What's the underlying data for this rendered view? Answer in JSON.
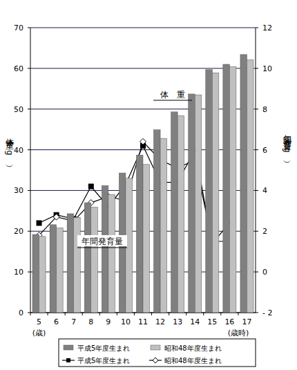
{
  "chart_data": {
    "type": "bar",
    "categories": [
      "5",
      "6",
      "7",
      "8",
      "9",
      "10",
      "11",
      "12",
      "13",
      "14",
      "15",
      "16",
      "17"
    ],
    "y_label": "体重（kg）",
    "y2_label": "年間発育量（kg）",
    "annotations": [
      "(歳)",
      "(歳時)",
      "体　重",
      "年間発育量"
    ],
    "ylim": [
      0,
      70
    ],
    "yticks": [
      0,
      10,
      20,
      30,
      40,
      50,
      60,
      70
    ],
    "y2lim": [
      -2,
      12
    ],
    "y2ticks": [
      {
        "value": -2,
        "label": "- 2"
      },
      0,
      2,
      4,
      6,
      8,
      10,
      12
    ],
    "grid": true,
    "legend": "bottom",
    "series": [
      {
        "name": "平成5年度生まれ",
        "type": "bar",
        "color": "#808080",
        "values": [
          19.2,
          21.6,
          24.3,
          27.0,
          31.2,
          34.3,
          38.7,
          44.9,
          49.3,
          53.7,
          59.7,
          61.0,
          63.4
        ]
      },
      {
        "name": "昭和48年度生まれ",
        "type": "bar",
        "color": "#c0c0c0",
        "values": [
          18.7,
          20.8,
          23.4,
          25.9,
          29.0,
          33.0,
          36.4,
          42.8,
          48.4,
          53.5,
          58.9,
          60.4,
          62.1
        ]
      },
      {
        "name": "平成5年度生まれ",
        "type": "line",
        "axis": "y2",
        "color": "#000000",
        "marker": "square",
        "line_style": "solid",
        "values": [
          2.4,
          2.8,
          2.6,
          4.2,
          3.2,
          4.3,
          6.2,
          4.4,
          4.4,
          6.0,
          1.4,
          2.4,
          null
        ]
      },
      {
        "name": "昭和48年度生まれ",
        "type": "line",
        "axis": "y2",
        "color": "#000000",
        "marker": "diamond",
        "line_style": "solid",
        "values": [
          1.8,
          2.7,
          2.5,
          3.4,
          3.7,
          3.5,
          6.4,
          5.5,
          5.1,
          5.5,
          1.5,
          1.5,
          null
        ]
      }
    ]
  }
}
